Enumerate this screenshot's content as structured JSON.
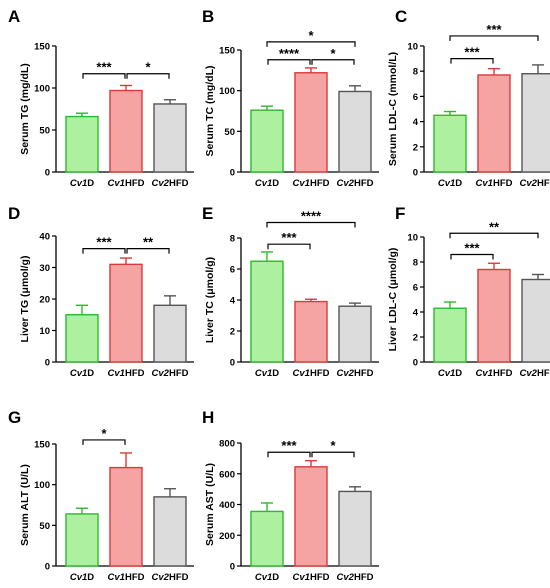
{
  "colors": {
    "cv1d_fill": "#ADF0A0",
    "cv1d_stroke": "#2EB82E",
    "cv1hfd_fill": "#F5A3A3",
    "cv1hfd_stroke": "#D93A3A",
    "cv2hfd_fill": "#DCDCDC",
    "cv2hfd_stroke": "#555555"
  },
  "chart_data": [
    {
      "panel": "A",
      "type": "bar",
      "categories": [
        "Cv1D",
        "Cv1HFD",
        "Cv2HFD"
      ],
      "values": [
        66,
        97,
        81
      ],
      "errors": [
        4,
        6,
        5
      ],
      "ylabel": "Serum TG (mg/dL)",
      "ylim": [
        0,
        150
      ],
      "yticks": [
        0,
        50,
        100,
        150
      ],
      "significance": [
        {
          "from": 0,
          "to": 1,
          "label": "***",
          "level": 117
        },
        {
          "from": 1,
          "to": 2,
          "label": "*",
          "level": 117
        }
      ]
    },
    {
      "panel": "B",
      "type": "bar",
      "categories": [
        "Cv1D",
        "Cv1HFD",
        "Cv2HFD"
      ],
      "values": [
        76,
        122,
        99
      ],
      "errors": [
        5,
        6,
        7
      ],
      "ylabel": "Serum TC (mg/dL)",
      "ylim": [
        0,
        150
      ],
      "yticks": [
        0,
        50,
        100,
        150
      ],
      "significance": [
        {
          "from": 0,
          "to": 1,
          "label": "****",
          "level": 138
        },
        {
          "from": 1,
          "to": 2,
          "label": "*",
          "level": 138
        },
        {
          "from": 0,
          "to": 2,
          "label": "*",
          "level": 160
        }
      ]
    },
    {
      "panel": "C",
      "type": "bar",
      "categories": [
        "Cv1D",
        "Cv1HFD",
        "Cv2HFD"
      ],
      "values": [
        4.5,
        7.7,
        7.8
      ],
      "errors": [
        0.3,
        0.5,
        0.7
      ],
      "ylabel": "Serum LDL-C (mmol/L)",
      "ylim": [
        0,
        10
      ],
      "yticks": [
        0,
        2,
        4,
        6,
        8,
        10
      ],
      "significance": [
        {
          "from": 0,
          "to": 1,
          "label": "***",
          "level": 9.0
        },
        {
          "from": 0,
          "to": 2,
          "label": "***",
          "level": 10.8
        }
      ]
    },
    {
      "panel": "D",
      "type": "bar",
      "categories": [
        "Cv1D",
        "Cv1HFD",
        "Cv2HFD"
      ],
      "values": [
        15,
        31,
        18
      ],
      "errors": [
        3,
        2,
        3
      ],
      "ylabel": "Liver TG (μmol/g)",
      "ylim": [
        0,
        40
      ],
      "yticks": [
        0,
        10,
        20,
        30,
        40
      ],
      "significance": [
        {
          "from": 0,
          "to": 1,
          "label": "***",
          "level": 36
        },
        {
          "from": 1,
          "to": 2,
          "label": "**",
          "level": 36
        }
      ]
    },
    {
      "panel": "E",
      "type": "bar",
      "categories": [
        "Cv1D",
        "Cv1HFD",
        "Cv2HFD"
      ],
      "values": [
        6.5,
        3.9,
        3.6
      ],
      "errors": [
        0.6,
        0.15,
        0.2
      ],
      "ylabel": "Liver TC (μmol/g)",
      "ylim": [
        0,
        8
      ],
      "yticks": [
        0,
        2,
        4,
        6,
        8
      ],
      "significance": [
        {
          "from": 0,
          "to": 1,
          "label": "***",
          "level": 7.6
        },
        {
          "from": 0,
          "to": 2,
          "label": "****",
          "level": 9.0
        }
      ]
    },
    {
      "panel": "F",
      "type": "bar",
      "categories": [
        "Cv1D",
        "Cv1HFD",
        "Cv2HFD"
      ],
      "values": [
        4.3,
        7.4,
        6.6
      ],
      "errors": [
        0.5,
        0.5,
        0.4
      ],
      "ylabel": "Liver LDL-C (μmol/g)",
      "ylim": [
        0,
        10
      ],
      "yticks": [
        0,
        2,
        4,
        6,
        8,
        10
      ],
      "significance": [
        {
          "from": 0,
          "to": 1,
          "label": "***",
          "level": 8.6
        },
        {
          "from": 0,
          "to": 2,
          "label": "**",
          "level": 10.3
        }
      ]
    },
    {
      "panel": "G",
      "type": "bar",
      "categories": [
        "Cv1D",
        "Cv1HFD",
        "Cv2HFD"
      ],
      "values": [
        64,
        121,
        85
      ],
      "errors": [
        7,
        18,
        10
      ],
      "ylabel": "Serum ALT (U/L)",
      "ylim": [
        0,
        150
      ],
      "yticks": [
        0,
        50,
        100,
        150
      ],
      "significance": [
        {
          "from": 0,
          "to": 1,
          "label": "*",
          "level": 155
        }
      ]
    },
    {
      "panel": "H",
      "type": "bar",
      "categories": [
        "Cv1D",
        "Cv1HFD",
        "Cv2HFD"
      ],
      "values": [
        355,
        645,
        485
      ],
      "errors": [
        55,
        40,
        30
      ],
      "ylabel": "Serum AST (U/L)",
      "ylim": [
        0,
        800
      ],
      "yticks": [
        0,
        200,
        400,
        600,
        800
      ],
      "significance": [
        {
          "from": 0,
          "to": 1,
          "label": "***",
          "level": 740
        },
        {
          "from": 1,
          "to": 2,
          "label": "*",
          "level": 740
        }
      ]
    }
  ]
}
